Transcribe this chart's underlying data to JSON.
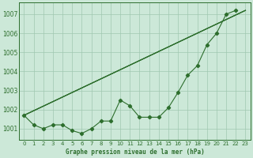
{
  "background_color": "#cce8d8",
  "grid_color": "#a0c8b0",
  "line_color": "#2d6e2d",
  "title": "Graphe pression niveau de la mer (hPa)",
  "ylim": [
    1000.4,
    1007.6
  ],
  "xlim": [
    -0.5,
    23.5
  ],
  "yticks": [
    1001,
    1002,
    1003,
    1004,
    1005,
    1006,
    1007
  ],
  "xticks": [
    0,
    1,
    2,
    3,
    4,
    5,
    6,
    7,
    8,
    9,
    10,
    11,
    12,
    13,
    14,
    15,
    16,
    17,
    18,
    19,
    20,
    21,
    22,
    23
  ],
  "main_x": [
    0,
    1,
    2,
    3,
    4,
    5,
    6,
    7,
    8,
    9,
    10,
    11,
    12,
    13,
    14,
    15,
    16,
    17,
    18,
    19,
    20,
    21,
    22
  ],
  "main_y": [
    1001.7,
    1001.2,
    1001.0,
    1001.2,
    1001.2,
    1000.9,
    1000.75,
    1001.0,
    1001.4,
    1001.4,
    1002.5,
    1002.2,
    1001.6,
    1001.6,
    1001.6,
    1002.1,
    1002.9,
    1003.8,
    1004.3,
    1005.4,
    1006.0,
    1007.0,
    1007.2
  ],
  "trend_lines": [
    {
      "x0": 0,
      "y0": 1001.7,
      "x1": 23,
      "y1": 1007.2
    },
    {
      "x0": 0,
      "y0": 1001.7,
      "x1": 23,
      "y1": 1007.2
    },
    {
      "x0": 0,
      "y0": 1001.7,
      "x1": 23,
      "y1": 1007.2
    }
  ],
  "title_fontsize": 5.5,
  "tick_fontsize": 5.0
}
